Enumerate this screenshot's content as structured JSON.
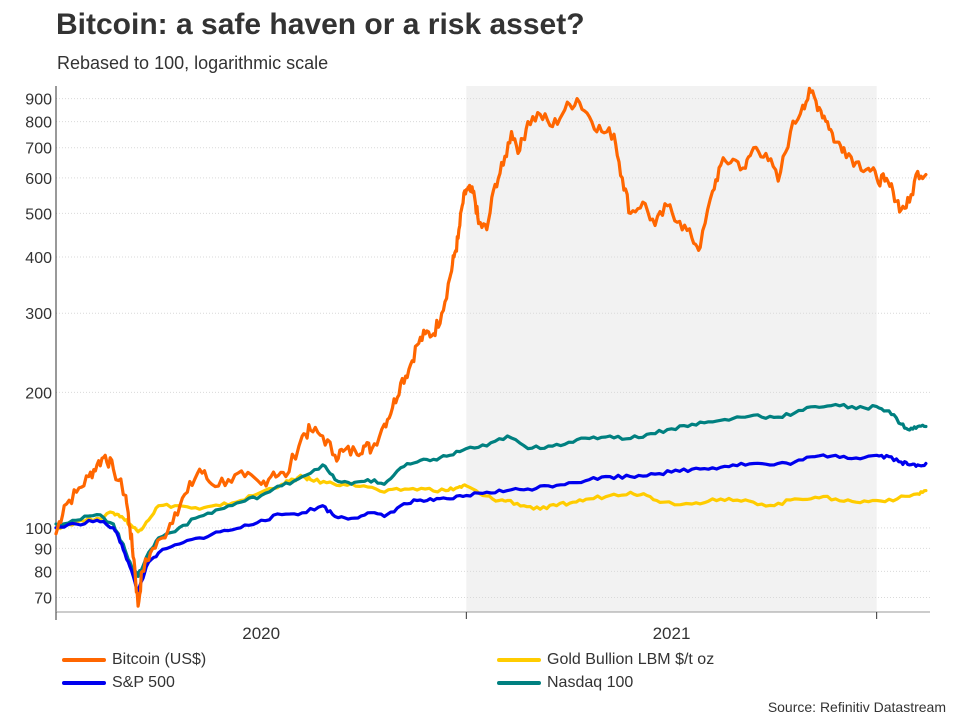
{
  "title": "Bitcoin: a safe haven or a risk asset?",
  "subtitle": "Rebased to 100, logarithmic scale",
  "source": "Source: Refinitiv Datastream",
  "chart_data": {
    "type": "line",
    "y_scale": "log",
    "ylim": [
      65,
      960
    ],
    "y_ticks": [
      70,
      80,
      90,
      100,
      200,
      300,
      400,
      500,
      600,
      700,
      800,
      900
    ],
    "x_range": [
      2019.0,
      2021.13
    ],
    "x_tick_positions": [
      2019.0,
      2020.0,
      2021.0
    ],
    "x_tick_labels": [
      {
        "label": "2020",
        "x": 2019.5
      },
      {
        "label": "2021",
        "x": 2020.5
      }
    ],
    "shaded_region": {
      "from": 2020.0,
      "to": 2021.0,
      "color": "#f2f2f2"
    },
    "series": [
      {
        "name": "Bitcoin (US$)",
        "color": "#ff6600",
        "points": [
          [
            2019.0,
            97
          ],
          [
            2019.02,
            112
          ],
          [
            2019.05,
            120
          ],
          [
            2019.08,
            130
          ],
          [
            2019.1,
            138
          ],
          [
            2019.12,
            145
          ],
          [
            2019.14,
            135
          ],
          [
            2019.17,
            118
          ],
          [
            2019.18,
            100
          ],
          [
            2019.19,
            85
          ],
          [
            2019.2,
            67
          ],
          [
            2019.21,
            80
          ],
          [
            2019.23,
            88
          ],
          [
            2019.26,
            95
          ],
          [
            2019.29,
            108
          ],
          [
            2019.32,
            120
          ],
          [
            2019.35,
            135
          ],
          [
            2019.38,
            125
          ],
          [
            2019.42,
            128
          ],
          [
            2019.46,
            130
          ],
          [
            2019.5,
            125
          ],
          [
            2019.53,
            133
          ],
          [
            2019.56,
            130
          ],
          [
            2019.6,
            160
          ],
          [
            2019.62,
            165
          ],
          [
            2019.65,
            160
          ],
          [
            2019.68,
            145
          ],
          [
            2019.7,
            148
          ],
          [
            2019.73,
            148
          ],
          [
            2019.75,
            152
          ],
          [
            2019.77,
            150
          ],
          [
            2019.8,
            170
          ],
          [
            2019.82,
            185
          ],
          [
            2019.84,
            210
          ],
          [
            2019.86,
            225
          ],
          [
            2019.88,
            255
          ],
          [
            2019.9,
            270
          ],
          [
            2019.92,
            270
          ],
          [
            2019.94,
            300
          ],
          [
            2019.96,
            360
          ],
          [
            2019.97,
            400
          ],
          [
            2019.98,
            440
          ],
          [
            2019.99,
            520
          ],
          [
            2020.0,
            565
          ],
          [
            2020.01,
            560
          ],
          [
            2020.02,
            545
          ],
          [
            2020.03,
            475
          ],
          [
            2020.05,
            460
          ],
          [
            2020.07,
            580
          ],
          [
            2020.09,
            640
          ],
          [
            2020.11,
            760
          ],
          [
            2020.13,
            690
          ],
          [
            2020.15,
            800
          ],
          [
            2020.18,
            830
          ],
          [
            2020.21,
            780
          ],
          [
            2020.24,
            850
          ],
          [
            2020.27,
            900
          ],
          [
            2020.3,
            820
          ],
          [
            2020.33,
            760
          ],
          [
            2020.36,
            750
          ],
          [
            2020.38,
            600
          ],
          [
            2020.4,
            500
          ],
          [
            2020.43,
            530
          ],
          [
            2020.46,
            470
          ],
          [
            2020.49,
            520
          ],
          [
            2020.52,
            480
          ],
          [
            2020.55,
            440
          ],
          [
            2020.57,
            420
          ],
          [
            2020.6,
            560
          ],
          [
            2020.62,
            640
          ],
          [
            2020.65,
            660
          ],
          [
            2020.68,
            630
          ],
          [
            2020.7,
            700
          ],
          [
            2020.73,
            680
          ],
          [
            2020.76,
            590
          ],
          [
            2020.79,
            760
          ],
          [
            2020.82,
            870
          ],
          [
            2020.84,
            930
          ],
          [
            2020.86,
            860
          ],
          [
            2020.88,
            800
          ],
          [
            2020.9,
            720
          ],
          [
            2020.92,
            700
          ],
          [
            2020.95,
            650
          ],
          [
            2020.98,
            630
          ],
          [
            2021.0,
            600
          ],
          [
            2021.02,
            590
          ],
          [
            2021.04,
            560
          ],
          [
            2021.06,
            510
          ],
          [
            2021.08,
            530
          ],
          [
            2021.1,
            620
          ],
          [
            2021.12,
            610
          ]
        ]
      },
      {
        "name": "Gold Bullion LBM $/t oz",
        "color": "#ffcc00",
        "points": [
          [
            2019.0,
            100
          ],
          [
            2019.05,
            103
          ],
          [
            2019.1,
            105
          ],
          [
            2019.14,
            108
          ],
          [
            2019.16,
            106
          ],
          [
            2019.18,
            102
          ],
          [
            2019.2,
            98
          ],
          [
            2019.22,
            103
          ],
          [
            2019.25,
            112
          ],
          [
            2019.3,
            112
          ],
          [
            2019.35,
            110
          ],
          [
            2019.4,
            112
          ],
          [
            2019.45,
            115
          ],
          [
            2019.5,
            120
          ],
          [
            2019.55,
            125
          ],
          [
            2019.58,
            128
          ],
          [
            2019.6,
            130
          ],
          [
            2019.62,
            128
          ],
          [
            2019.66,
            126
          ],
          [
            2019.7,
            125
          ],
          [
            2019.75,
            124
          ],
          [
            2019.8,
            120
          ],
          [
            2019.85,
            122
          ],
          [
            2019.9,
            122
          ],
          [
            2019.95,
            121
          ],
          [
            2019.98,
            123
          ],
          [
            2020.0,
            124
          ],
          [
            2020.04,
            118
          ],
          [
            2020.08,
            115
          ],
          [
            2020.1,
            115
          ],
          [
            2020.14,
            112
          ],
          [
            2020.18,
            110
          ],
          [
            2020.22,
            112
          ],
          [
            2020.26,
            114
          ],
          [
            2020.3,
            116
          ],
          [
            2020.35,
            118
          ],
          [
            2020.4,
            120
          ],
          [
            2020.44,
            118
          ],
          [
            2020.48,
            114
          ],
          [
            2020.55,
            113
          ],
          [
            2020.6,
            116
          ],
          [
            2020.65,
            115
          ],
          [
            2020.7,
            114
          ],
          [
            2020.75,
            112
          ],
          [
            2020.8,
            116
          ],
          [
            2020.85,
            117
          ],
          [
            2020.9,
            116
          ],
          [
            2020.95,
            114
          ],
          [
            2021.0,
            115
          ],
          [
            2021.05,
            116
          ],
          [
            2021.1,
            119
          ],
          [
            2021.12,
            121
          ]
        ]
      },
      {
        "name": "S&P 500",
        "color": "#0000ee",
        "points": [
          [
            2019.0,
            100
          ],
          [
            2019.05,
            102
          ],
          [
            2019.1,
            104
          ],
          [
            2019.14,
            100
          ],
          [
            2019.16,
            92
          ],
          [
            2019.18,
            82
          ],
          [
            2019.2,
            72
          ],
          [
            2019.22,
            82
          ],
          [
            2019.25,
            88
          ],
          [
            2019.3,
            92
          ],
          [
            2019.35,
            95
          ],
          [
            2019.4,
            98
          ],
          [
            2019.45,
            100
          ],
          [
            2019.5,
            104
          ],
          [
            2019.55,
            107
          ],
          [
            2019.6,
            108
          ],
          [
            2019.65,
            112
          ],
          [
            2019.68,
            106
          ],
          [
            2019.72,
            105
          ],
          [
            2019.76,
            108
          ],
          [
            2019.8,
            106
          ],
          [
            2019.84,
            112
          ],
          [
            2019.88,
            115
          ],
          [
            2019.92,
            115
          ],
          [
            2019.96,
            116
          ],
          [
            2020.0,
            118
          ],
          [
            2020.05,
            120
          ],
          [
            2020.1,
            121
          ],
          [
            2020.15,
            122
          ],
          [
            2020.2,
            124
          ],
          [
            2020.25,
            126
          ],
          [
            2020.3,
            128
          ],
          [
            2020.35,
            130
          ],
          [
            2020.4,
            130
          ],
          [
            2020.45,
            132
          ],
          [
            2020.5,
            133
          ],
          [
            2020.55,
            135
          ],
          [
            2020.6,
            136
          ],
          [
            2020.65,
            138
          ],
          [
            2020.7,
            139
          ],
          [
            2020.75,
            138
          ],
          [
            2020.8,
            140
          ],
          [
            2020.85,
            144
          ],
          [
            2020.9,
            145
          ],
          [
            2020.95,
            143
          ],
          [
            2021.0,
            145
          ],
          [
            2021.03,
            144
          ],
          [
            2021.06,
            140
          ],
          [
            2021.08,
            138
          ],
          [
            2021.1,
            138
          ],
          [
            2021.12,
            139
          ]
        ]
      },
      {
        "name": "Nasdaq 100",
        "color": "#008080",
        "points": [
          [
            2019.0,
            102
          ],
          [
            2019.05,
            104
          ],
          [
            2019.1,
            107
          ],
          [
            2019.14,
            102
          ],
          [
            2019.16,
            93
          ],
          [
            2019.18,
            84
          ],
          [
            2019.2,
            78
          ],
          [
            2019.22,
            86
          ],
          [
            2019.25,
            95
          ],
          [
            2019.3,
            100
          ],
          [
            2019.35,
            106
          ],
          [
            2019.4,
            110
          ],
          [
            2019.45,
            114
          ],
          [
            2019.5,
            118
          ],
          [
            2019.55,
            124
          ],
          [
            2019.6,
            130
          ],
          [
            2019.65,
            138
          ],
          [
            2019.68,
            128
          ],
          [
            2019.72,
            125
          ],
          [
            2019.76,
            128
          ],
          [
            2019.8,
            125
          ],
          [
            2019.84,
            136
          ],
          [
            2019.88,
            140
          ],
          [
            2019.92,
            142
          ],
          [
            2019.96,
            145
          ],
          [
            2020.0,
            150
          ],
          [
            2020.05,
            152
          ],
          [
            2020.1,
            160
          ],
          [
            2020.15,
            150
          ],
          [
            2020.2,
            152
          ],
          [
            2020.25,
            155
          ],
          [
            2020.3,
            158
          ],
          [
            2020.35,
            160
          ],
          [
            2020.4,
            158
          ],
          [
            2020.45,
            162
          ],
          [
            2020.5,
            166
          ],
          [
            2020.55,
            170
          ],
          [
            2020.6,
            172
          ],
          [
            2020.65,
            175
          ],
          [
            2020.7,
            178
          ],
          [
            2020.75,
            176
          ],
          [
            2020.8,
            180
          ],
          [
            2020.85,
            186
          ],
          [
            2020.9,
            188
          ],
          [
            2020.95,
            184
          ],
          [
            2021.0,
            186
          ],
          [
            2021.03,
            182
          ],
          [
            2021.06,
            170
          ],
          [
            2021.08,
            165
          ],
          [
            2021.1,
            168
          ],
          [
            2021.12,
            168
          ]
        ]
      }
    ]
  },
  "legend": [
    {
      "label": "Bitcoin (US$)",
      "color": "#ff6600"
    },
    {
      "label": "Gold Bullion LBM $/t oz",
      "color": "#ffcc00"
    },
    {
      "label": "S&P 500",
      "color": "#0000ee"
    },
    {
      "label": "Nasdaq 100",
      "color": "#008080"
    }
  ]
}
